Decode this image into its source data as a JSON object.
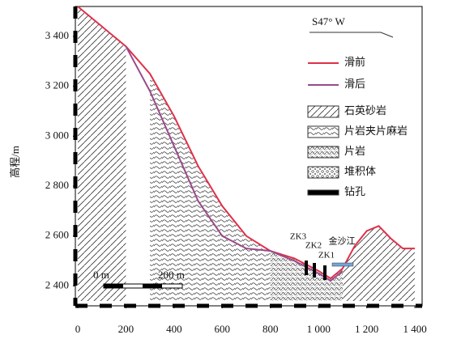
{
  "chart_data": {
    "type": "line",
    "y_label": "高程/m",
    "direction_label": "S47° W",
    "x": [
      0,
      100,
      200,
      300,
      400,
      500,
      600,
      700,
      800,
      900,
      1000,
      1050,
      1100,
      1150,
      1200,
      1250,
      1300,
      1350,
      1400
    ],
    "series": [
      {
        "name": "滑前",
        "color": "#e0304a",
        "values": [
          3520,
          3440,
          3360,
          3250,
          3080,
          2880,
          2720,
          2600,
          2540,
          2510,
          2460,
          2430,
          2470,
          2560,
          2620,
          2640,
          2590,
          2550,
          2550
        ]
      },
      {
        "name": "滑后",
        "color": "#9a4a8a",
        "values": [
          null,
          null,
          3360,
          3180,
          2960,
          2740,
          2600,
          2550,
          2540,
          2500,
          2450,
          2420,
          2460,
          null,
          null,
          null,
          null,
          null,
          null
        ]
      }
    ],
    "rock_types": [
      "石英砂岩",
      "片岩夹片麻岩",
      "片岩",
      "堆积体",
      "钻孔"
    ],
    "annotations": [
      "ZK3",
      "ZK2",
      "ZK1",
      "金沙江"
    ],
    "scale_labels": [
      "0 m",
      "200 m"
    ],
    "xlim": [
      -10,
      1430
    ],
    "ylim": [
      2320,
      3520
    ],
    "xticks": [
      0,
      200,
      400,
      600,
      800,
      {
        "value": 1000,
        "label": "1 000"
      },
      {
        "value": 1200,
        "label": "1 200"
      },
      {
        "value": 1400,
        "label": "1 400"
      }
    ],
    "yticks": [
      {
        "value": 2400,
        "label": "2 400"
      },
      {
        "value": 2600,
        "label": "2 600"
      },
      {
        "value": 2800,
        "label": "2 800"
      },
      {
        "value": 3000,
        "label": "3 000"
      },
      {
        "value": 3200,
        "label": "3 200"
      },
      {
        "value": 3400,
        "label": "3 400"
      }
    ]
  }
}
